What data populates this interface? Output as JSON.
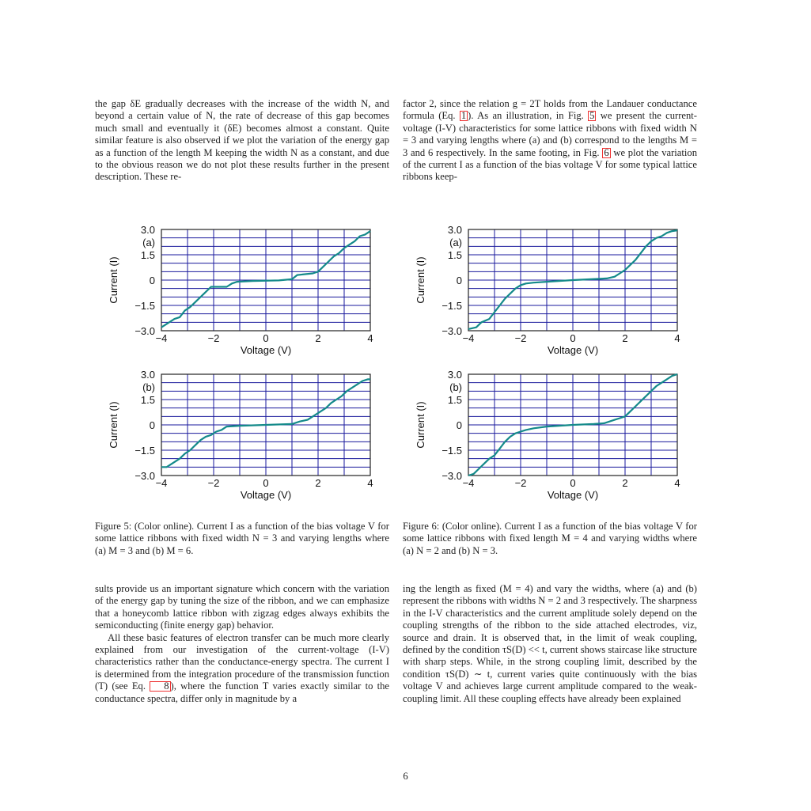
{
  "page_number": "6",
  "text": {
    "top_left": "the gap δE gradually decreases with the increase of the width N, and beyond a certain value of N, the rate of decrease of this gap becomes much small and eventually it (δE) becomes almost a constant. Quite similar feature is also observed if we plot the variation of the energy gap as a function of the length M keeping the width N as a constant, and due to the obvious reason we do not plot these results further in the present description. These re-",
    "top_right_1": "factor 2, since the relation g = 2T holds from the Landauer conductance formula (Eq. ",
    "top_right_ref1": "1",
    "top_right_2": "). As an illustration, in Fig. ",
    "top_right_ref2": "5",
    "top_right_3": " we present the current-voltage (I-V) characteristics for some lattice ribbons with fixed width N = 3 and varying lengths where (a) and (b) correspond to the lengths M = 3 and 6 respectively. In the same footing, in Fig. ",
    "top_right_ref3": "6",
    "top_right_4": " we plot the variation of the current I as a function of the bias voltage V for some typical lattice ribbons keep-",
    "bottom_left_p1": "sults provide us an important signature which concern with the variation of the energy gap by tuning the size of the ribbon, and we can emphasize that a honeycomb lattice ribbon with zigzag edges always exhibits the semiconducting (finite energy gap) behavior.",
    "bottom_left_p2a": "All these basic features of electron transfer can be much more clearly explained from our investigation of the current-voltage (I-V) characteristics rather than the conductance-energy spectra. The current I is determined from the integration procedure of the transmission function (T) (see Eq. ",
    "bottom_left_p2_ref": "8",
    "bottom_left_p2b": "), where the function T varies exactly similar to the conductance spectra, differ only in magnitude by a",
    "bottom_right": "ing the length as fixed (M = 4) and vary the widths, where (a) and (b) represent the ribbons with widths N = 2 and 3 respectively. The sharpness in the I-V characteristics and the current amplitude solely depend on the coupling strengths of the ribbon to the side attached electrodes, viz, source and drain. It is observed that, in the limit of weak coupling, defined by the condition τS(D) << t, current shows staircase like structure with sharp steps. While, in the strong coupling limit, described by the condition τS(D) ∼ t, current varies quite continuously with the bias voltage V and achieves large current amplitude compared to the weak-coupling limit. All these coupling effects have already been explained"
  },
  "captions": {
    "fig5": "Figure 5: (Color online). Current I as a function of the bias voltage V for some lattice ribbons with fixed width N = 3 and varying lengths where (a) M = 3 and (b) M = 6.",
    "fig6": "Figure 6: (Color online). Current I as a function of the bias voltage V for some lattice ribbons with fixed length M = 4 and varying widths where (a) N = 2 and (b) N = 3."
  },
  "colors": {
    "grid": "#1a1a9c",
    "curve": "#148a8a"
  },
  "chart_data": [
    {
      "id": "fig5a",
      "type": "line",
      "panel_label": "(a)",
      "xlabel": "Voltage (V)",
      "ylabel": "Current (I)",
      "xlim": [
        -4,
        4
      ],
      "ylim": [
        -3.0,
        3.0
      ],
      "xticks": [
        "−4",
        "−2",
        "0",
        "2",
        "4"
      ],
      "yticks": [
        "3.0",
        "1.5",
        "0",
        "−1.5",
        "−3.0"
      ],
      "grid": true,
      "x": [
        -4,
        -3.7,
        -3.5,
        -3.3,
        -3.1,
        -2.9,
        -2.7,
        -2.5,
        -2.3,
        -2.1,
        -1.9,
        -1.5,
        -1.3,
        -1.1,
        -0.5,
        0.5,
        1.0,
        1.2,
        1.8,
        2.0,
        2.2,
        2.4,
        2.6,
        2.8,
        3.0,
        3.2,
        3.4,
        3.6,
        3.8,
        4.0
      ],
      "y": [
        -2.8,
        -2.5,
        -2.3,
        -2.2,
        -1.8,
        -1.6,
        -1.3,
        -1.0,
        -0.7,
        -0.4,
        -0.4,
        -0.4,
        -0.2,
        -0.1,
        -0.05,
        -0.02,
        0.05,
        0.3,
        0.4,
        0.5,
        0.8,
        1.1,
        1.4,
        1.6,
        1.9,
        2.1,
        2.3,
        2.6,
        2.7,
        2.9
      ]
    },
    {
      "id": "fig6a",
      "type": "line",
      "panel_label": "(a)",
      "xlabel": "Voltage (V)",
      "ylabel": "Current (I)",
      "xlim": [
        -4,
        4
      ],
      "ylim": [
        -3.0,
        3.0
      ],
      "xticks": [
        "−4",
        "−2",
        "0",
        "2",
        "4"
      ],
      "yticks": [
        "3.0",
        "1.5",
        "0",
        "−1.5",
        "−3.0"
      ],
      "grid": true,
      "x": [
        -4,
        -3.7,
        -3.5,
        -3.2,
        -3.0,
        -2.8,
        -2.6,
        -2.4,
        -2.2,
        -2.0,
        -1.8,
        -1.5,
        -1.0,
        0,
        0.7,
        1.3,
        1.6,
        1.8,
        2.0,
        2.2,
        2.4,
        2.6,
        2.8,
        3.0,
        3.2,
        3.4,
        3.6,
        3.8,
        4.0
      ],
      "y": [
        -2.9,
        -2.8,
        -2.5,
        -2.3,
        -1.9,
        -1.5,
        -1.1,
        -0.8,
        -0.5,
        -0.3,
        -0.2,
        -0.15,
        -0.1,
        0,
        0.05,
        0.1,
        0.2,
        0.4,
        0.6,
        0.9,
        1.2,
        1.6,
        2.0,
        2.3,
        2.5,
        2.6,
        2.8,
        2.9,
        2.95
      ]
    },
    {
      "id": "fig5b",
      "type": "line",
      "panel_label": "(b)",
      "xlabel": "Voltage (V)",
      "ylabel": "Current (I)",
      "xlim": [
        -4,
        4
      ],
      "ylim": [
        -3.0,
        3.0
      ],
      "xticks": [
        "−4",
        "−2",
        "0",
        "2",
        "4"
      ],
      "yticks": [
        "3.0",
        "1.5",
        "0",
        "−1.5",
        "−3.0"
      ],
      "grid": true,
      "x": [
        -4,
        -3.8,
        -3.5,
        -3.3,
        -3.1,
        -2.9,
        -2.7,
        -2.5,
        -2.3,
        -2.1,
        -1.9,
        -1.7,
        -1.5,
        -1.0,
        0,
        1.0,
        1.3,
        1.6,
        1.9,
        2.1,
        2.3,
        2.5,
        2.7,
        2.9,
        3.1,
        3.3,
        3.5,
        3.7,
        3.9,
        4.0
      ],
      "y": [
        -2.5,
        -2.5,
        -2.2,
        -2.0,
        -1.7,
        -1.5,
        -1.2,
        -0.9,
        -0.7,
        -0.6,
        -0.4,
        -0.3,
        -0.1,
        -0.05,
        0,
        0.05,
        0.2,
        0.3,
        0.6,
        0.8,
        1.0,
        1.3,
        1.5,
        1.7,
        2.0,
        2.2,
        2.4,
        2.6,
        2.7,
        2.7
      ]
    },
    {
      "id": "fig6b",
      "type": "line",
      "panel_label": "(b)",
      "xlabel": "Voltage (V)",
      "ylabel": "Current (I)",
      "xlim": [
        -4,
        4
      ],
      "ylim": [
        -3.0,
        3.0
      ],
      "xticks": [
        "−4",
        "−2",
        "0",
        "2",
        "4"
      ],
      "yticks": [
        "3.0",
        "1.5",
        "0",
        "−1.5",
        "−3.0"
      ],
      "grid": true,
      "x": [
        -4,
        -3.8,
        -3.6,
        -3.4,
        -3.2,
        -3.0,
        -2.8,
        -2.6,
        -2.4,
        -2.2,
        -2.0,
        -1.8,
        -1.5,
        -1.0,
        0,
        0.8,
        1.2,
        1.6,
        1.8,
        2.0,
        2.2,
        2.4,
        2.6,
        2.8,
        3.0,
        3.2,
        3.4,
        3.6,
        3.8,
        4.0
      ],
      "y": [
        -3.0,
        -2.9,
        -2.6,
        -2.3,
        -2.0,
        -1.8,
        -1.4,
        -1.0,
        -0.7,
        -0.5,
        -0.4,
        -0.3,
        -0.2,
        -0.1,
        0,
        0.05,
        0.1,
        0.3,
        0.4,
        0.5,
        0.8,
        1.1,
        1.4,
        1.7,
        2.0,
        2.3,
        2.5,
        2.7,
        2.9,
        3.0
      ]
    }
  ]
}
